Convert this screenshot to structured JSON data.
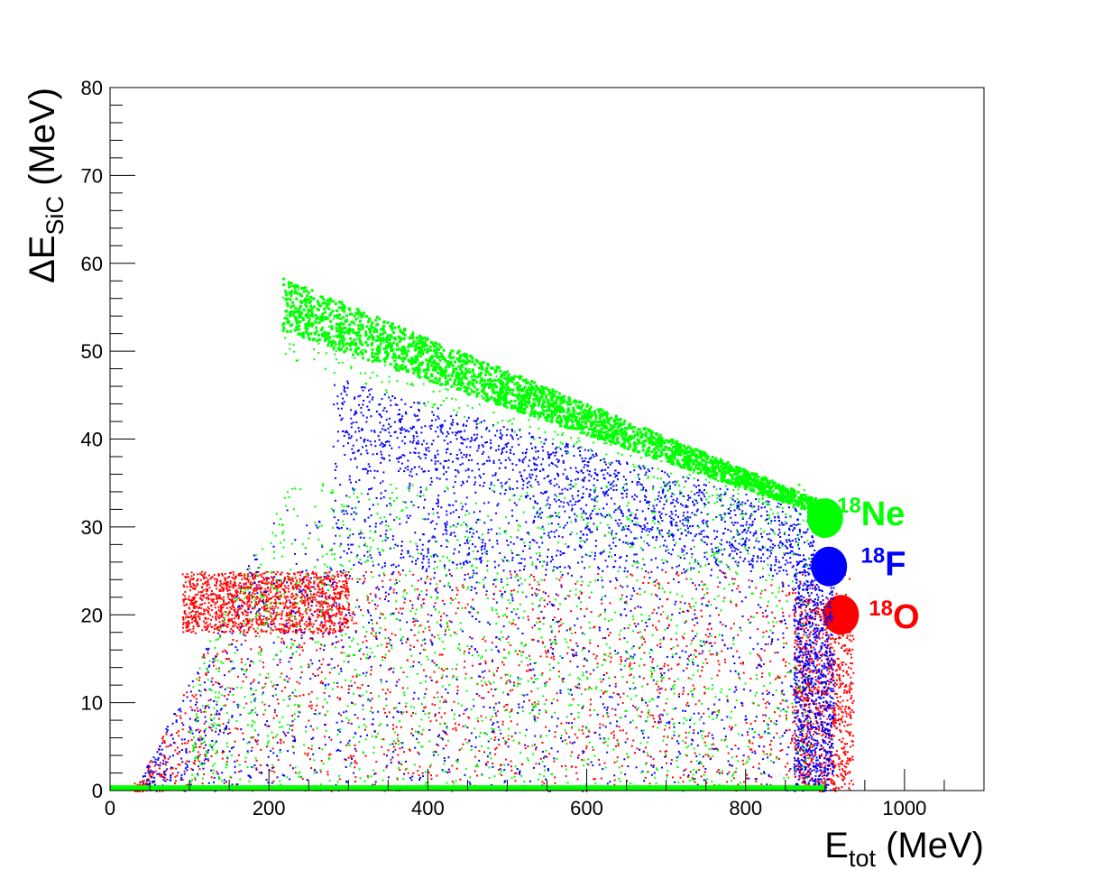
{
  "chart_data": {
    "type": "scatter",
    "title": "",
    "xlabel": {
      "main": "E",
      "sub": "tot",
      "unit": " (MeV)"
    },
    "ylabel": {
      "prefix": "ΔE",
      "sub": "SiC",
      "unit": " (MeV)"
    },
    "xlim": [
      0,
      1100
    ],
    "ylim": [
      0,
      80
    ],
    "xticks": [
      0,
      200,
      400,
      600,
      800,
      1000
    ],
    "yticks": [
      0,
      10,
      20,
      30,
      40,
      50,
      60,
      70,
      80
    ],
    "grid": false,
    "series": [
      {
        "name": "18O",
        "label_sup": "18",
        "label_main": "O",
        "color": "#ff0000",
        "label_at": [
          955,
          18.5
        ],
        "regions": [
          {
            "x": [
              30,
              930
            ],
            "y": [
              0,
              25
            ]
          },
          {
            "x": [
              90,
              300
            ],
            "y": [
              18,
              25
            ]
          },
          {
            "x": [
              860,
              935
            ],
            "y": [
              0,
              22
            ]
          }
        ],
        "peak": [
          920,
          20
        ]
      },
      {
        "name": "18F",
        "label_sup": "18",
        "label_main": "F",
        "color": "#0000ff",
        "label_at": [
          945,
          24.5
        ],
        "regions": [
          {
            "x": [
              40,
              910
            ],
            "y": [
              0,
              32
            ]
          },
          {
            "x": [
              280,
              900
            ],
            "y": [
              25,
              47
            ]
          },
          {
            "x": [
              860,
              910
            ],
            "y": [
              0,
              27
            ]
          }
        ],
        "peak": [
          905,
          25.5
        ]
      },
      {
        "name": "18Ne",
        "label_sup": "18",
        "label_main": "Ne",
        "color": "#00ff00",
        "label_at": [
          915,
          30.2
        ],
        "regions": [
          {
            "x": [
              100,
              880
            ],
            "y": [
              0,
              35
            ]
          },
          {
            "x": [
              210,
              910
            ],
            "y": [
              30,
              59
            ]
          }
        ],
        "peak": [
          900,
          31
        ]
      }
    ]
  }
}
